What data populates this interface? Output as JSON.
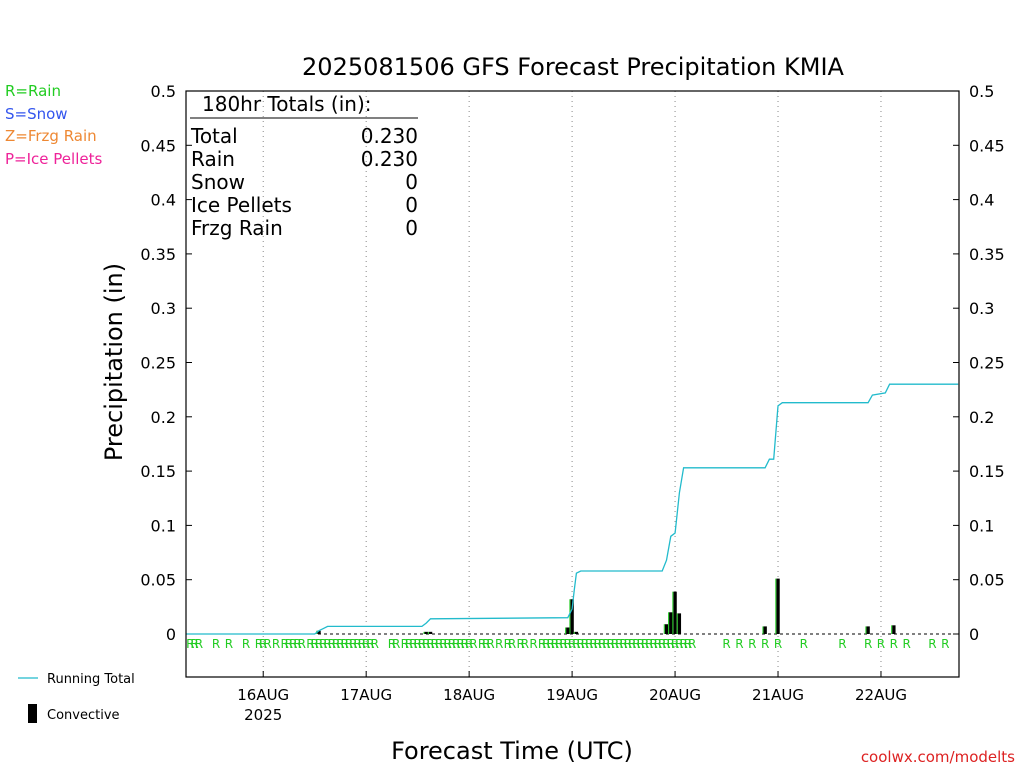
{
  "chart_data": {
    "type": "bar",
    "title": "2025081506 GFS Forecast Precipitation KMIA",
    "xlabel": "Forecast Time (UTC)",
    "ylabel": "Precipitation (in)",
    "credit": "coolwx.com/modelts",
    "ylim": [
      0,
      0.5
    ],
    "y_ticks": [
      "0",
      "0.05",
      "0.1",
      "0.15",
      "0.2",
      "0.25",
      "0.3",
      "0.35",
      "0.4",
      "0.45",
      "0.5"
    ],
    "x_start": "2025-08-15 06Z",
    "x_end": "2025-08-22 18Z",
    "x_ticks": [
      {
        "label": "16AUG",
        "sub": "2025",
        "hour": 18
      },
      {
        "label": "17AUG",
        "sub": "",
        "hour": 42
      },
      {
        "label": "18AUG",
        "sub": "",
        "hour": 66
      },
      {
        "label": "19AUG",
        "sub": "",
        "hour": 90
      },
      {
        "label": "20AUG",
        "sub": "",
        "hour": 114
      },
      {
        "label": "21AUG",
        "sub": "",
        "hour": 138
      },
      {
        "label": "22AUG",
        "sub": "",
        "hour": 162
      }
    ],
    "grid": "vertical dotted at 00Z",
    "ptype_legend": [
      {
        "text": "R=Rain",
        "color": "#22cc22"
      },
      {
        "text": "S=Snow",
        "color": "#3355ee"
      },
      {
        "text": "Z=Frzg Rain",
        "color": "#ee8833"
      },
      {
        "text": "P=Ice Pellets",
        "color": "#ee2299"
      }
    ],
    "totals": {
      "header": "180hr Totals (in):",
      "rows": [
        {
          "label": "Total",
          "value": "0.230"
        },
        {
          "label": "Rain",
          "value": "0.230"
        },
        {
          "label": "Snow",
          "value": "0"
        },
        {
          "label": "Ice Pellets",
          "value": "0"
        },
        {
          "label": "Frzg Rain",
          "value": "0"
        }
      ]
    },
    "series": [
      {
        "name": "Running Total",
        "type": "line",
        "color": "#22bbcc",
        "points": [
          [
            0,
            0
          ],
          [
            30,
            0
          ],
          [
            31,
            0.003
          ],
          [
            32,
            0.005
          ],
          [
            33,
            0.007
          ],
          [
            55,
            0.007
          ],
          [
            56,
            0.01
          ],
          [
            57,
            0.014
          ],
          [
            89,
            0.015
          ],
          [
            90,
            0.023
          ],
          [
            90.5,
            0.04
          ],
          [
            91,
            0.056
          ],
          [
            92,
            0.058
          ],
          [
            111,
            0.058
          ],
          [
            112,
            0.068
          ],
          [
            113,
            0.09
          ],
          [
            114,
            0.093
          ],
          [
            115,
            0.13
          ],
          [
            116,
            0.153
          ],
          [
            135,
            0.153
          ],
          [
            136,
            0.161
          ],
          [
            137,
            0.161
          ],
          [
            138,
            0.21
          ],
          [
            139,
            0.213
          ],
          [
            159,
            0.213
          ],
          [
            160,
            0.22
          ],
          [
            163,
            0.222
          ],
          [
            164,
            0.23
          ],
          [
            180,
            0.23
          ]
        ]
      },
      {
        "name": "Convective",
        "type": "bar",
        "color": "#000000",
        "bar_accent": "#22cc22",
        "points": [
          [
            31,
            0.003
          ],
          [
            56,
            0.002
          ],
          [
            57,
            0.002
          ],
          [
            89,
            0.006
          ],
          [
            90,
            0.032
          ],
          [
            91,
            0.002
          ],
          [
            112,
            0.009
          ],
          [
            113,
            0.02
          ],
          [
            114,
            0.039
          ],
          [
            115,
            0.019
          ],
          [
            135,
            0.007
          ],
          [
            138,
            0.051
          ],
          [
            159,
            0.007
          ],
          [
            165,
            0.008
          ]
        ]
      }
    ],
    "ptype_marks": {
      "color": "#22cc22",
      "letter": "R",
      "hours": [
        1,
        2,
        3,
        7,
        10,
        14,
        17,
        18,
        19,
        21,
        23,
        24,
        25,
        26,
        27,
        29,
        30,
        31,
        32,
        33,
        34,
        35,
        36,
        37,
        38,
        39,
        40,
        41,
        42,
        43,
        44,
        48,
        49,
        51,
        52,
        53,
        54,
        55,
        56,
        57,
        58,
        59,
        60,
        61,
        62,
        63,
        64,
        65,
        66,
        67,
        69,
        70,
        71,
        73,
        75,
        76,
        78,
        79,
        81,
        83,
        84,
        85,
        86,
        87,
        88,
        89,
        90,
        91,
        92,
        93,
        94,
        95,
        96,
        97,
        98,
        99,
        100,
        101,
        102,
        103,
        104,
        105,
        106,
        107,
        108,
        109,
        110,
        111,
        112,
        113,
        114,
        115,
        116,
        117,
        118,
        126,
        129,
        132,
        135,
        138,
        144,
        153,
        159,
        162,
        165,
        168,
        174,
        177
      ]
    },
    "legend": [
      {
        "label": "Running Total",
        "marker": "line",
        "color": "#22bbcc"
      },
      {
        "label": "Convective",
        "marker": "bar",
        "color": "#000000"
      }
    ]
  }
}
